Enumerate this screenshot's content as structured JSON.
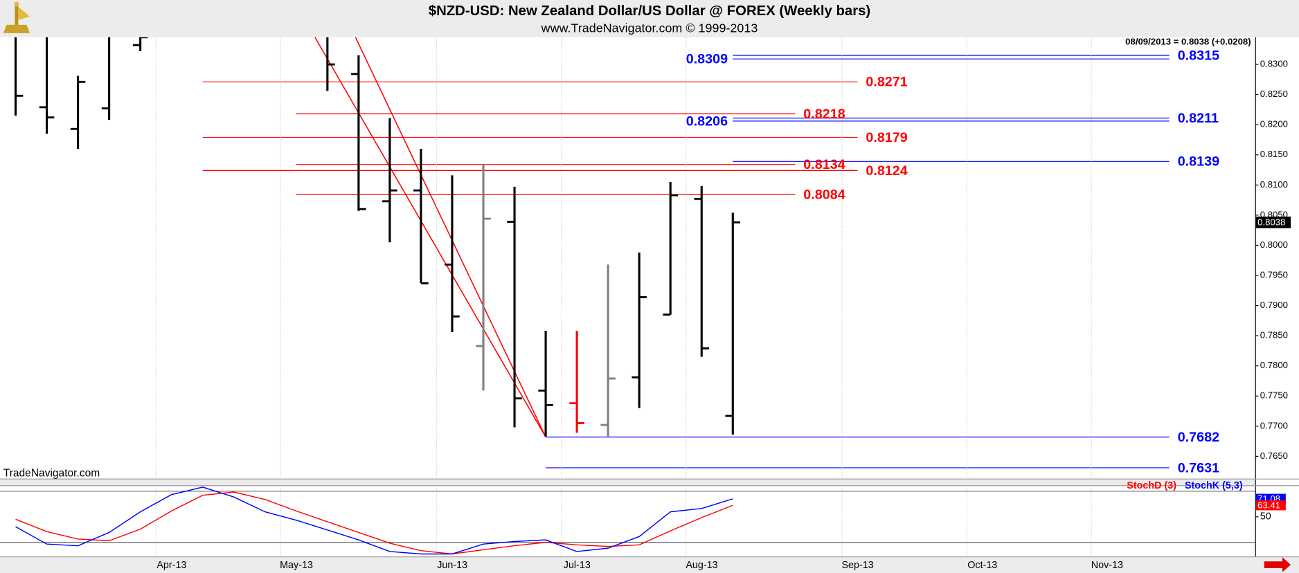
{
  "chart_data": [
    {
      "type": "ohlc",
      "title": "$NZD-USD:  New Zealand Dollar/US Dollar @ FOREX  (Weekly bars)",
      "subtitle": "www.TradeNavigator.com © 1999-2013",
      "header": "08/09/2013 = 0.8038 (+0.0208)",
      "watermark": "TradeNavigator.com",
      "x": [
        0,
        1,
        2,
        3,
        4,
        10,
        11,
        12,
        13,
        14,
        15,
        16,
        17,
        18,
        19,
        20,
        21,
        22,
        23
      ],
      "open": [
        0.836,
        0.8229,
        0.8193,
        0.8227,
        0.8332,
        0.836,
        0.8284,
        0.8073,
        0.8091,
        0.7968,
        0.7833,
        0.8039,
        0.7759,
        0.7738,
        0.7702,
        0.7781,
        0.7885,
        0.8077,
        0.7717
      ],
      "high": [
        0.84,
        0.838,
        0.8281,
        0.838,
        0.836,
        0.838,
        0.8315,
        0.8211,
        0.816,
        0.8116,
        0.8135,
        0.8097,
        0.7858,
        0.7858,
        0.7968,
        0.7988,
        0.8105,
        0.8098,
        0.8054
      ],
      "low": [
        0.8215,
        0.8185,
        0.816,
        0.8208,
        0.8322,
        0.8256,
        0.8057,
        0.8005,
        0.7937,
        0.7856,
        0.7759,
        0.7698,
        0.7683,
        0.7689,
        0.7683,
        0.773,
        0.7885,
        0.7815,
        0.7686
      ],
      "close": [
        0.8248,
        0.8212,
        0.8271,
        0.835,
        0.8345,
        0.83,
        0.806,
        0.8091,
        0.7937,
        0.7882,
        0.8044,
        0.7746,
        0.7735,
        0.7705,
        0.7779,
        0.7914,
        0.8083,
        0.7829,
        0.8038
      ],
      "bar_colors": [
        "#000000",
        "#000000",
        "#000000",
        "#000000",
        "#000000",
        "#000000",
        "#000000",
        "#000000",
        "#000000",
        "#000000",
        "#808080",
        "#000000",
        "#000000",
        "#ff0000",
        "#808080",
        "#000000",
        "#000000",
        "#000000",
        "#000000"
      ],
      "xlim": [
        -0.5,
        39.75
      ],
      "ylim": [
        0.7613,
        0.8345
      ],
      "yticks": [
        {
          "value": 0.765,
          "label": "0.7650"
        },
        {
          "value": 0.77,
          "label": "0.7700"
        },
        {
          "value": 0.775,
          "label": "0.7750"
        },
        {
          "value": 0.78,
          "label": "0.7800"
        },
        {
          "value": 0.785,
          "label": "0.7850"
        },
        {
          "value": 0.79,
          "label": "0.7900"
        },
        {
          "value": 0.795,
          "label": "0.7950"
        },
        {
          "value": 0.8,
          "label": "0.8000"
        },
        {
          "value": 0.805,
          "label": "0.8050"
        },
        {
          "value": 0.81,
          "label": "0.8100"
        },
        {
          "value": 0.815,
          "label": "0.8150"
        },
        {
          "value": 0.82,
          "label": "0.8200"
        },
        {
          "value": 0.825,
          "label": "0.8250"
        },
        {
          "value": 0.83,
          "label": "0.8300"
        }
      ],
      "levels": [
        {
          "value": 0.8315,
          "color": "#0000ff",
          "x": [
            23,
            37
          ],
          "label_side": "right"
        },
        {
          "value": 0.8309,
          "color": "#0000ff",
          "x": [
            23,
            37
          ],
          "label_side": "left"
        },
        {
          "value": 0.8271,
          "color": "#ff0000",
          "x": [
            6,
            27
          ],
          "label_side": "right"
        },
        {
          "value": 0.8218,
          "color": "#ff0000",
          "x": [
            9,
            25
          ],
          "label_side": "right"
        },
        {
          "value": 0.8211,
          "color": "#0000ff",
          "x": [
            23,
            37
          ],
          "label_side": "right"
        },
        {
          "value": 0.8206,
          "color": "#0000ff",
          "x": [
            23,
            37
          ],
          "label_side": "left"
        },
        {
          "value": 0.8179,
          "color": "#ff0000",
          "x": [
            6,
            27
          ],
          "label_side": "right"
        },
        {
          "value": 0.8139,
          "color": "#0000ff",
          "x": [
            23,
            37
          ],
          "label_side": "right"
        },
        {
          "value": 0.8134,
          "color": "#ff0000",
          "x": [
            9,
            25
          ],
          "label_side": "right"
        },
        {
          "value": 0.8124,
          "color": "#ff0000",
          "x": [
            6,
            27
          ],
          "label_side": "right"
        },
        {
          "value": 0.8084,
          "color": "#ff0000",
          "x": [
            9,
            25
          ],
          "label_side": "right"
        },
        {
          "value": 0.7682,
          "color": "#0000ff",
          "x": [
            17,
            37
          ],
          "label_side": "right"
        },
        {
          "value": 0.7631,
          "color": "#0000ff",
          "x": [
            17,
            37
          ],
          "label_side": "right"
        }
      ],
      "trendlines": [
        {
          "color": "#ff0000",
          "x": [
            9.6,
            17
          ],
          "y": [
            0.8345,
            0.7682
          ]
        },
        {
          "color": "#ff0000",
          "x": [
            10.9,
            17
          ],
          "y": [
            0.8345,
            0.7682
          ]
        }
      ]
    },
    {
      "type": "line",
      "x": [
        0,
        1,
        2,
        3,
        4,
        5,
        6,
        7,
        8,
        9,
        10,
        11,
        12,
        13,
        14,
        15,
        16,
        17,
        18,
        19,
        20,
        21,
        22,
        23
      ],
      "series": [
        {
          "name": "StochD (3)",
          "color": "#ff0000",
          "values": [
            47.1,
            32.6,
            23.9,
            21.9,
            35.5,
            56.8,
            75.2,
            79,
            70.3,
            56.8,
            44.2,
            31.6,
            19,
            10.3,
            6.4,
            11.3,
            16.1,
            20,
            17.1,
            15.2,
            17.1,
            33.5,
            49,
            63.41
          ]
        },
        {
          "name": "StochK (5,3)",
          "color": "#0000ff",
          "values": [
            38.4,
            18,
            16,
            31.6,
            55.8,
            76,
            84.8,
            73.2,
            55.8,
            46,
            34.5,
            22.9,
            9.3,
            6.4,
            6.4,
            18,
            21,
            22.9,
            9.3,
            13.2,
            26.8,
            55.8,
            59.7,
            71.08
          ]
        }
      ],
      "xlim": [
        -0.5,
        39.75
      ],
      "xticks": [
        {
          "value": 4.5,
          "label": "Apr-13"
        },
        {
          "value": 8.5,
          "label": "May-13"
        },
        {
          "value": 13.5,
          "label": "Jun-13"
        },
        {
          "value": 17.5,
          "label": "Jul-13"
        },
        {
          "value": 21.5,
          "label": "Aug-13"
        },
        {
          "value": 26.5,
          "label": "Sep-13"
        },
        {
          "value": 30.5,
          "label": "Oct-13"
        },
        {
          "value": 34.5,
          "label": "Nov-13"
        }
      ],
      "ylim": [
        3.5,
        87
      ],
      "yticks": [
        50
      ],
      "reference_lines": [
        20,
        80
      ],
      "legend": "top-right"
    }
  ]
}
